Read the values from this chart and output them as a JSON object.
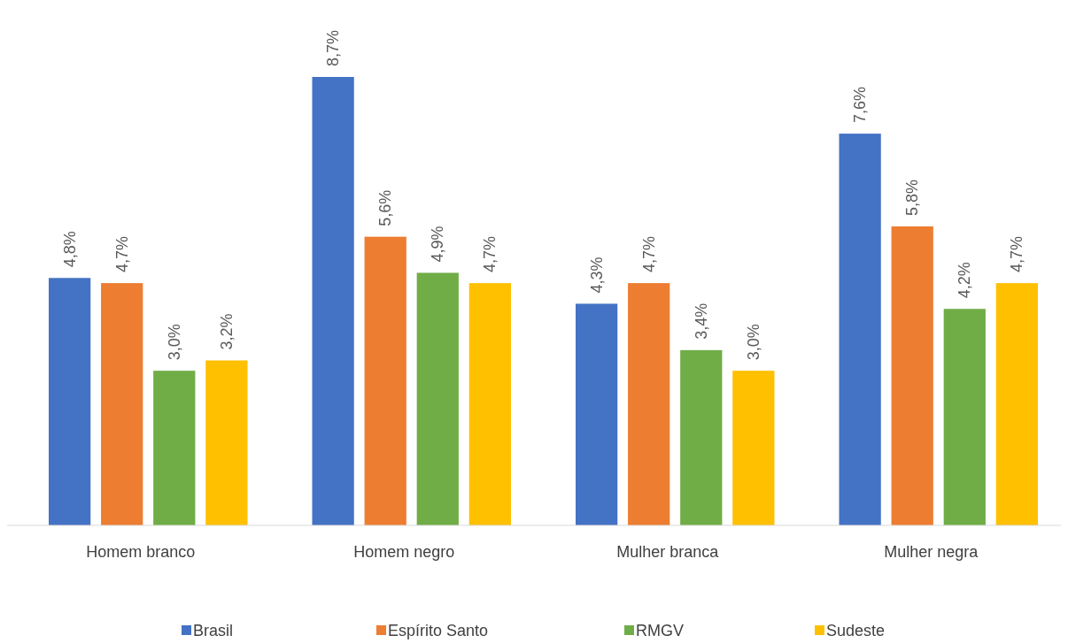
{
  "chart_data": {
    "type": "bar",
    "categories": [
      "Homem branco",
      "Homem negro",
      "Mulher branca",
      "Mulher negra"
    ],
    "series": [
      {
        "name": "Brasil",
        "color": "#4472c4",
        "values": [
          4.8,
          8.7,
          4.3,
          7.6
        ],
        "value_labels": [
          "4,8%",
          "8,7%",
          "4,3%",
          "7,6%"
        ]
      },
      {
        "name": "Espírito Santo",
        "color": "#ed7d31",
        "values": [
          4.7,
          5.6,
          4.7,
          5.8
        ],
        "value_labels": [
          "4,7%",
          "5,6%",
          "4,7%",
          "5,8%"
        ]
      },
      {
        "name": "RMGV",
        "color": "#70ad47",
        "values": [
          3.0,
          4.9,
          3.4,
          4.2
        ],
        "value_labels": [
          "3,0%",
          "4,9%",
          "3,4%",
          "4,2%"
        ]
      },
      {
        "name": "Sudeste",
        "color": "#ffc000",
        "values": [
          3.2,
          4.7,
          3.0,
          4.7
        ],
        "value_labels": [
          "3,2%",
          "4,7%",
          "3,0%",
          "4,7%"
        ]
      }
    ],
    "legend": "bottom"
  }
}
